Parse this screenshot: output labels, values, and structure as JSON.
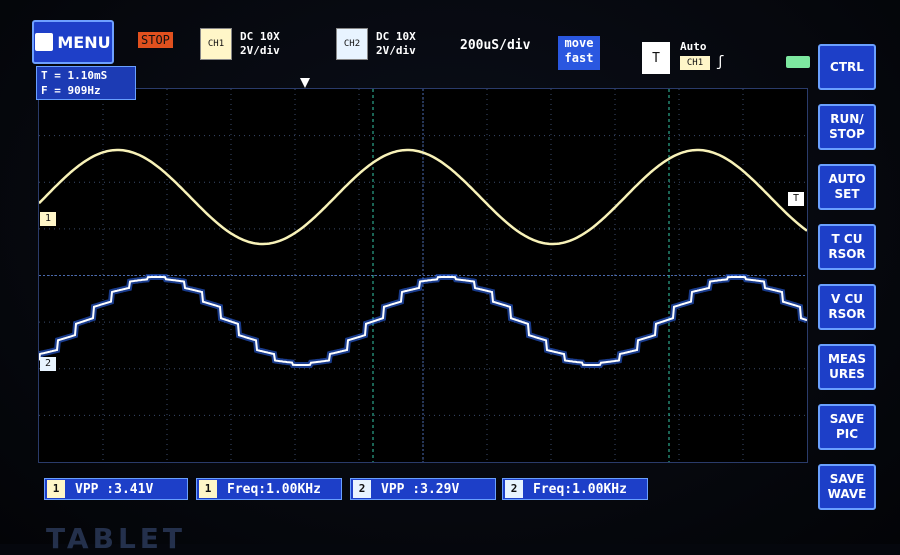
{
  "header": {
    "menu_label": "MENU",
    "status": "STOP",
    "ch1": {
      "tag": "CH1",
      "coupling": "DC 10X",
      "scale": "2V/div"
    },
    "ch2": {
      "tag": "CH2",
      "coupling": "DC 10X",
      "scale": "2V/div"
    },
    "timebase": "200uS/div",
    "move_mode": "move\nfast",
    "trigger": {
      "tag": "T",
      "mode": "Auto",
      "source": "CH1",
      "edge": "ʃ"
    }
  },
  "cursor_readout": {
    "t": "T = 1.10mS",
    "f": "F = 909Hz"
  },
  "markers": {
    "ch1": "1",
    "ch2": "2",
    "trigger": "T"
  },
  "sidebar": {
    "items": [
      {
        "label": "CTRL"
      },
      {
        "label": "RUN/\nSTOP"
      },
      {
        "label": "AUTO\nSET"
      },
      {
        "label": "T CU\nRSOR"
      },
      {
        "label": "V CU\nRSOR"
      },
      {
        "label": "MEAS\nURES"
      },
      {
        "label": "SAVE\nPIC"
      },
      {
        "label": "SAVE\nWAVE"
      }
    ]
  },
  "measurements": [
    {
      "ch": "1",
      "text": "VPP :3.41V"
    },
    {
      "ch": "1",
      "text": "Freq:1.00KHz"
    },
    {
      "ch": "2",
      "text": "VPP :3.29V"
    },
    {
      "ch": "2",
      "text": "Freq:1.00KHz"
    }
  ],
  "brand": "TABLET",
  "colors": {
    "ch1": "#f8f2b8",
    "ch2": "#ffffff",
    "ch2_glow": "#2e6bff",
    "grid": "#3a4a6a",
    "cursor_line": "#35c8a8",
    "accent": "#1d3fc8"
  }
}
